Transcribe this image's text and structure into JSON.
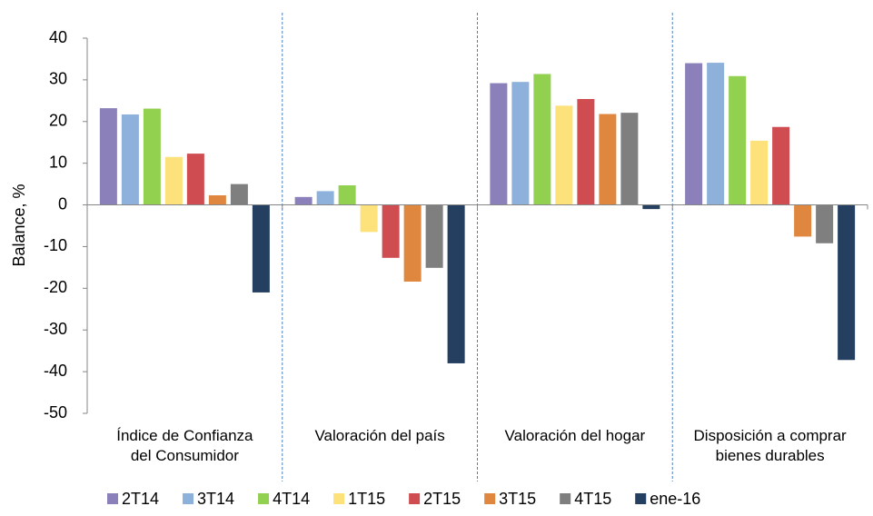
{
  "chart_data": {
    "type": "bar",
    "y_label": "Balance, %",
    "categories": [
      "Índice de Confianza\ndel Consumidor",
      "Valoración del país",
      "Valoración del hogar",
      "Disposición a comprar\nbienes durables"
    ],
    "series": [
      {
        "name": "2T14",
        "color": "#8b80ba",
        "values": [
          23.2,
          1.9,
          29.2,
          34.0
        ]
      },
      {
        "name": "3T14",
        "color": "#8eb1dc",
        "values": [
          21.7,
          3.3,
          29.5,
          34.1
        ]
      },
      {
        "name": "4T14",
        "color": "#92d050",
        "values": [
          23.1,
          4.7,
          31.4,
          30.9
        ]
      },
      {
        "name": "1T15",
        "color": "#fde17a",
        "values": [
          11.5,
          -6.5,
          23.8,
          15.4
        ]
      },
      {
        "name": "2T15",
        "color": "#cf4d51",
        "values": [
          12.3,
          -12.7,
          25.4,
          18.7
        ]
      },
      {
        "name": "3T15",
        "color": "#e0873f",
        "values": [
          2.3,
          -18.4,
          21.8,
          -7.6
        ]
      },
      {
        "name": "4T15",
        "color": "#7f7f7f",
        "values": [
          5.0,
          -15.1,
          22.1,
          -9.2
        ]
      },
      {
        "name": "ene-16",
        "color": "#243f60",
        "values": [
          -21.0,
          -38.0,
          -1.0,
          -37.2
        ]
      }
    ],
    "ylim": [
      -50,
      40
    ],
    "yticks": [
      -50,
      -40,
      -30,
      -20,
      -10,
      0,
      10,
      20,
      30,
      40
    ]
  }
}
